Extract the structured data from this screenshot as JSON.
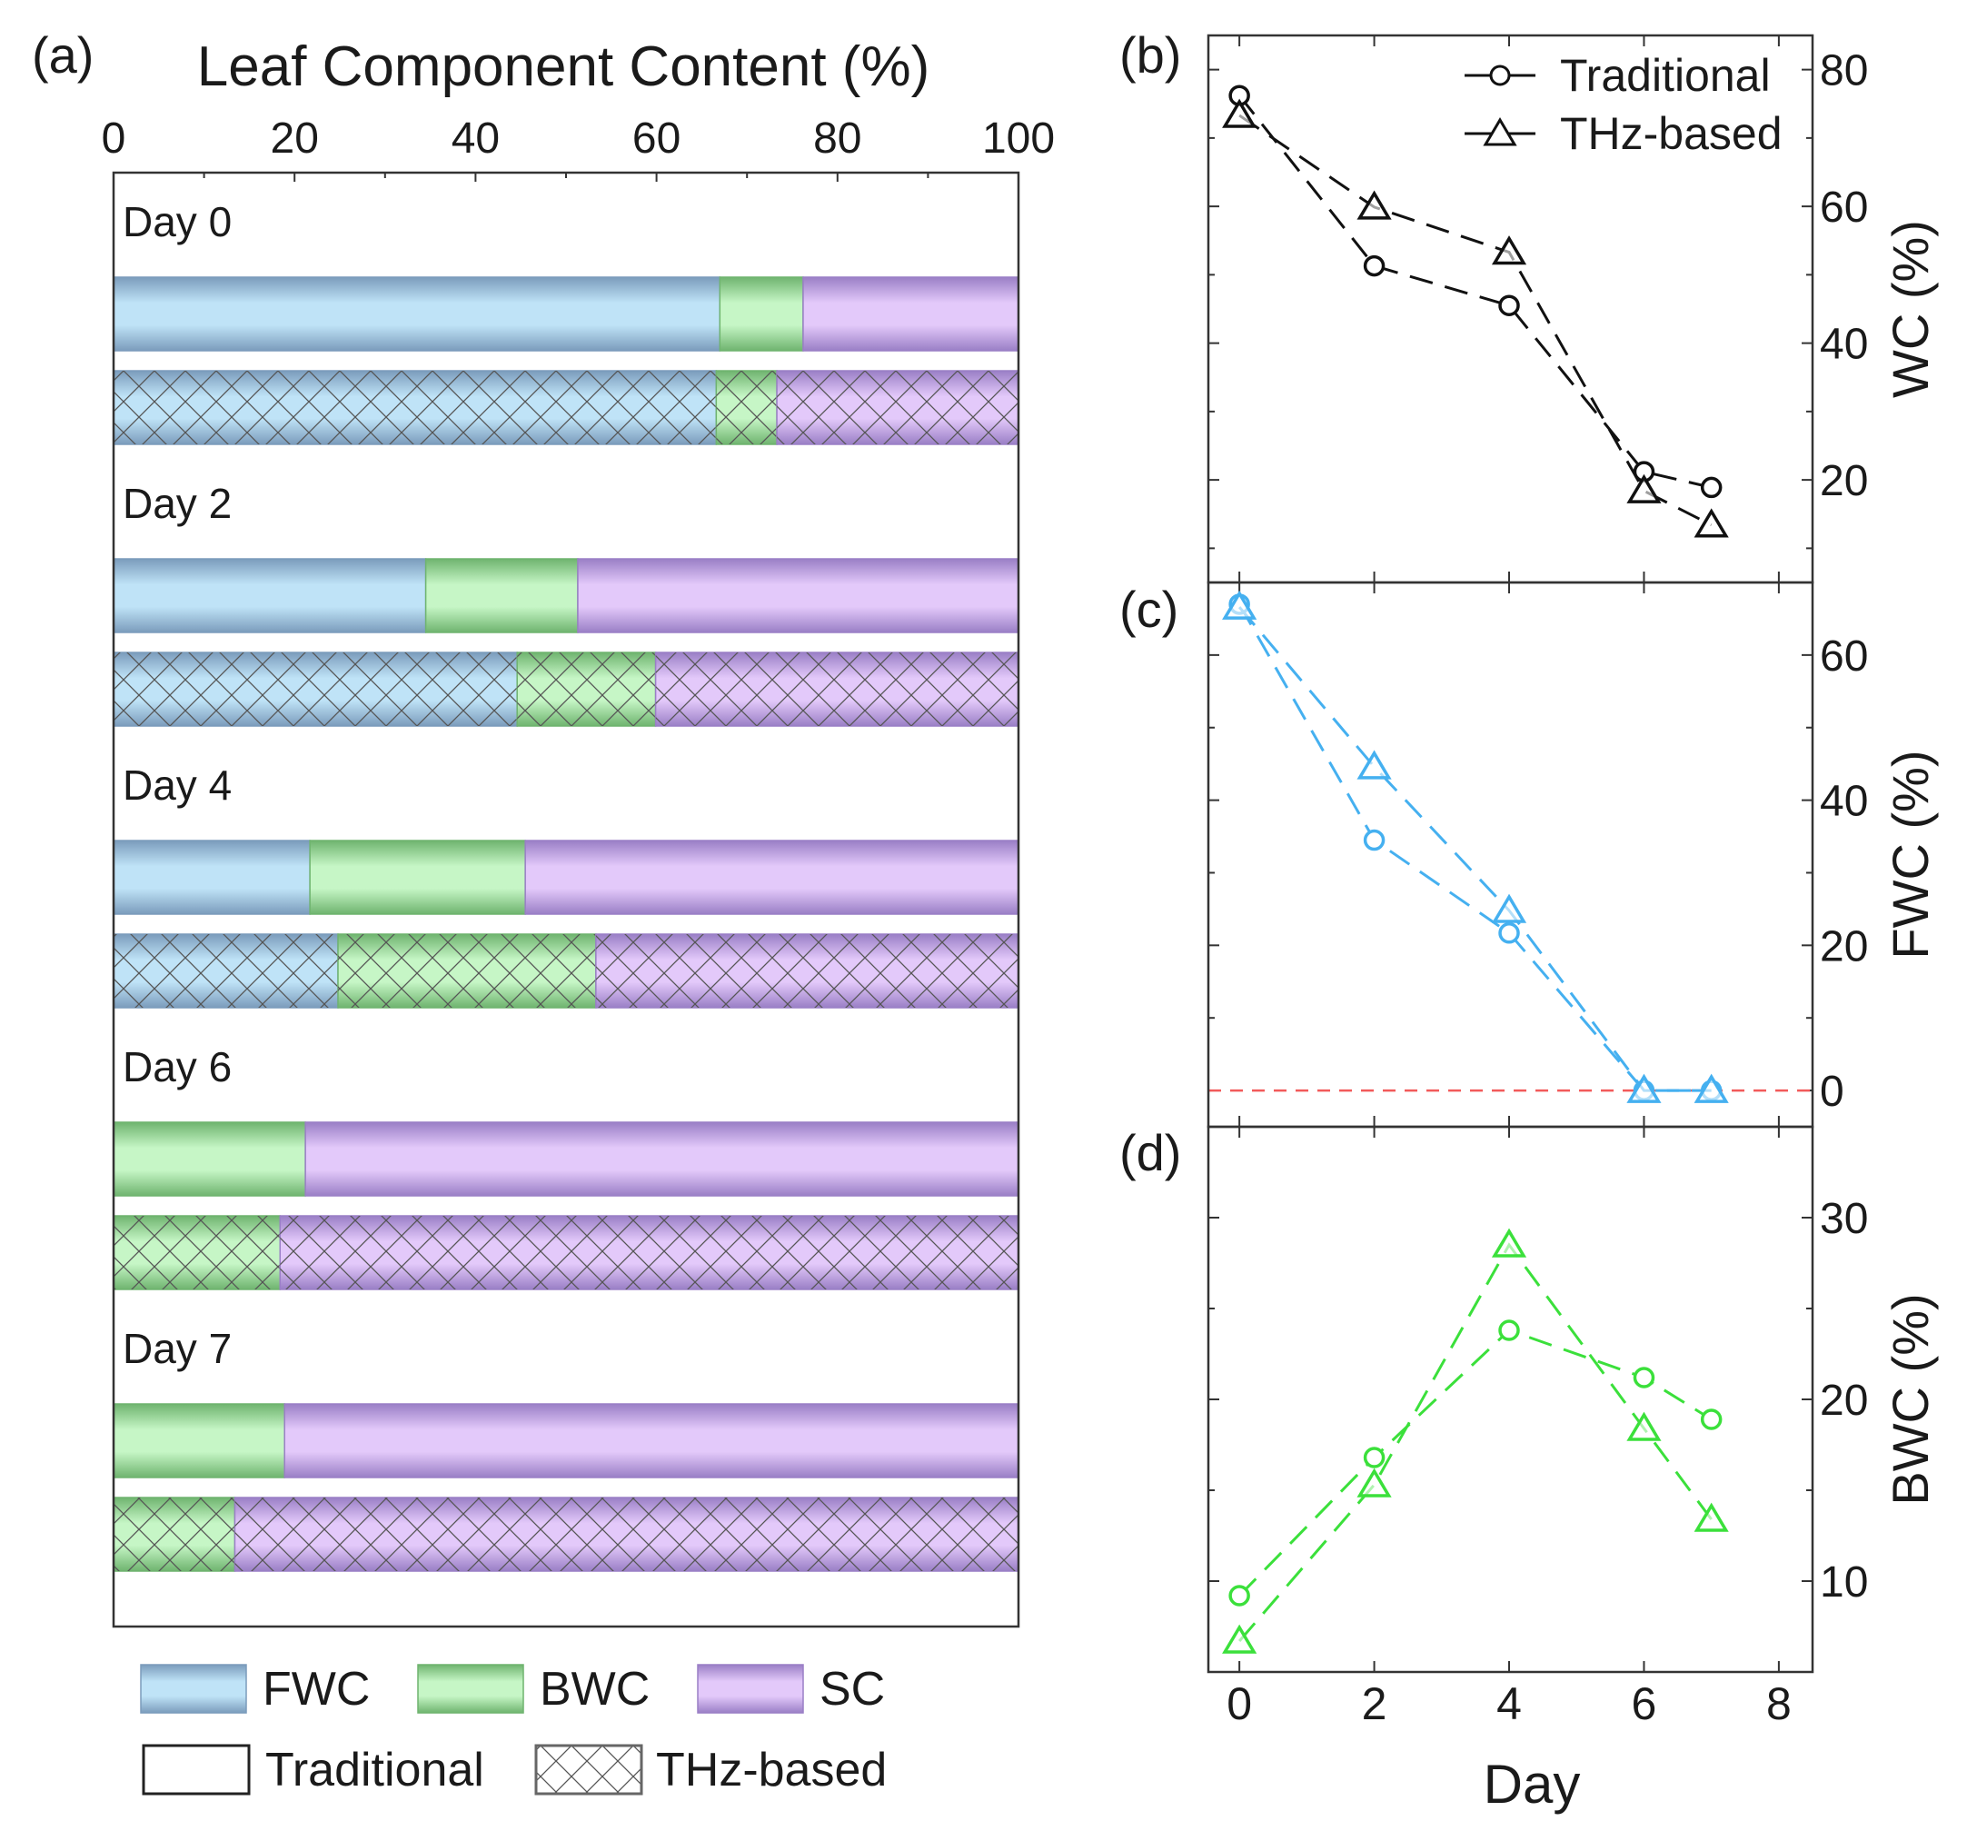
{
  "chart_data": [
    {
      "panel_label": "(a)",
      "type": "bar",
      "orientation": "horizontal",
      "stacked": true,
      "title": "Leaf Component Content (%)",
      "xlim": [
        0,
        100
      ],
      "xticks": [
        0,
        20,
        40,
        60,
        80,
        100
      ],
      "categories": [
        "Day 0",
        "Day 2",
        "Day 4",
        "Day 6",
        "Day 7"
      ],
      "methods": [
        "Traditional",
        "THz-based"
      ],
      "series": [
        {
          "name": "FWC",
          "color": "#bfe3f7",
          "edge": "#7b9cbc",
          "traditional": [
            67.0,
            34.5,
            21.7,
            0,
            0
          ],
          "thz": [
            66.6,
            44.6,
            24.8,
            0,
            0
          ]
        },
        {
          "name": "BWC",
          "color": "#c6f6c6",
          "edge": "#6fb46f",
          "traditional": [
            9.2,
            16.8,
            23.8,
            21.2,
            18.9
          ],
          "thz": [
            6.7,
            15.3,
            28.5,
            18.4,
            13.4
          ]
        },
        {
          "name": "SC",
          "color": "#e3c9fa",
          "edge": "#9a7fc6",
          "traditional": [
            23.8,
            48.7,
            54.5,
            78.8,
            81.1
          ],
          "thz": [
            26.7,
            40.1,
            46.7,
            81.6,
            86.6
          ]
        }
      ],
      "legend": {
        "placement": "bottom",
        "components": [
          "FWC",
          "BWC",
          "SC"
        ],
        "methods": [
          "Traditional",
          "THz-based"
        ]
      }
    },
    {
      "panel_label": "(b)",
      "type": "line",
      "x": [
        0,
        2,
        4,
        6,
        7
      ],
      "xlim": [
        -0.46,
        8.5
      ],
      "ylabel": "WC (%)",
      "ylim": [
        5,
        85
      ],
      "yticks": [
        20,
        40,
        60,
        80
      ],
      "color": "#111111",
      "series": [
        {
          "name": "Traditional",
          "marker": "circle",
          "values": [
            76.2,
            51.3,
            45.5,
            21.2,
            18.9
          ]
        },
        {
          "name": "THz-based",
          "marker": "triangle",
          "values": [
            73.3,
            59.9,
            53.3,
            18.4,
            13.4
          ]
        }
      ],
      "legend": {
        "placement": "top-right",
        "entries": [
          "Traditional",
          "THz-based"
        ]
      }
    },
    {
      "panel_label": "(c)",
      "type": "line",
      "x": [
        0,
        2,
        4,
        6,
        7
      ],
      "xlim": [
        -0.46,
        8.5
      ],
      "ylabel": "FWC (%)",
      "ylim": [
        -5,
        70
      ],
      "yticks": [
        0,
        20,
        40,
        60
      ],
      "color": "#45b0f0",
      "reference_line": {
        "y": 0,
        "color": "#f25a5a"
      },
      "series": [
        {
          "name": "Traditional",
          "marker": "circle",
          "values": [
            67.0,
            34.5,
            21.7,
            0,
            0
          ]
        },
        {
          "name": "THz-based",
          "marker": "triangle",
          "values": [
            66.6,
            44.6,
            24.8,
            0,
            0
          ]
        }
      ]
    },
    {
      "panel_label": "(d)",
      "type": "line",
      "x": [
        0,
        2,
        4,
        6,
        7
      ],
      "xlim": [
        -0.46,
        8.5
      ],
      "xlabel": "Day",
      "xticks": [
        0,
        2,
        4,
        6,
        8
      ],
      "ylabel": "BWC (%)",
      "ylim": [
        5,
        35
      ],
      "yticks": [
        10,
        20,
        30
      ],
      "color": "#3be03b",
      "series": [
        {
          "name": "Traditional",
          "marker": "circle",
          "values": [
            9.2,
            16.8,
            23.8,
            21.2,
            18.9
          ]
        },
        {
          "name": "THz-based",
          "marker": "triangle",
          "values": [
            6.7,
            15.3,
            28.5,
            18.4,
            13.4
          ]
        }
      ]
    }
  ]
}
